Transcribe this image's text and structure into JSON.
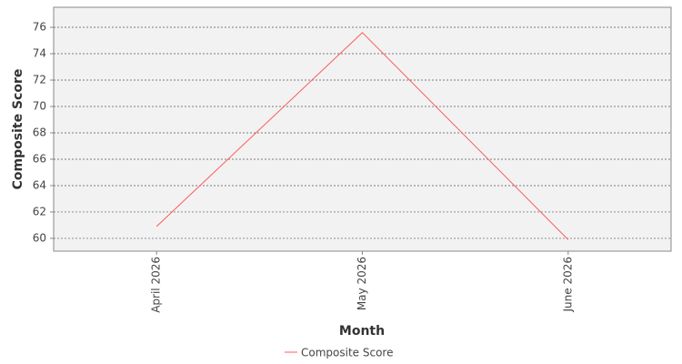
{
  "chart_data": {
    "type": "line",
    "categories": [
      "April 2026",
      "May 2026",
      "June 2026"
    ],
    "series": [
      {
        "name": "Composite Score",
        "color": "#ff5b5b",
        "values": [
          60.9,
          75.6,
          59.9
        ]
      }
    ],
    "x_label": "Month",
    "y_label": "Composite Score",
    "ylim": [
      59.03,
      77.52
    ],
    "yticks": [
      60,
      62,
      64,
      66,
      68,
      70,
      72,
      74,
      76
    ],
    "grid": true
  }
}
